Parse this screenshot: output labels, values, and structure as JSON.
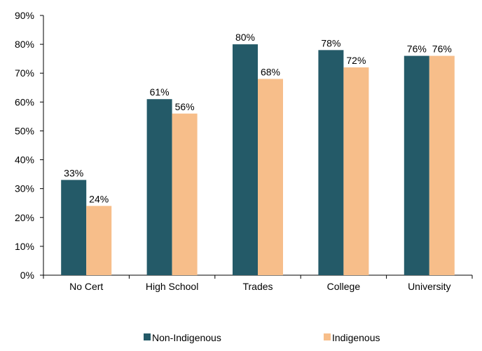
{
  "chart_data": {
    "type": "bar",
    "categories": [
      "No Cert",
      "High School",
      "Trades",
      "College",
      "University"
    ],
    "series": [
      {
        "name": "Non-Indigenous",
        "values": [
          33,
          61,
          80,
          78,
          76
        ],
        "labels": [
          "33%",
          "61%",
          "80%",
          "78%",
          "76%"
        ],
        "color": "#245a68"
      },
      {
        "name": "Indigenous",
        "values": [
          24,
          56,
          68,
          72,
          76
        ],
        "labels": [
          "24%",
          "56%",
          "68%",
          "72%",
          "76%"
        ],
        "color": "#f7be8a"
      }
    ],
    "ylim": [
      0,
      90
    ],
    "yticks": [
      "0%",
      "10%",
      "20%",
      "30%",
      "40%",
      "50%",
      "60%",
      "70%",
      "80%",
      "90%"
    ],
    "grid": false,
    "legend_position": "bottom",
    "title": "",
    "xlabel": "",
    "ylabel": ""
  }
}
